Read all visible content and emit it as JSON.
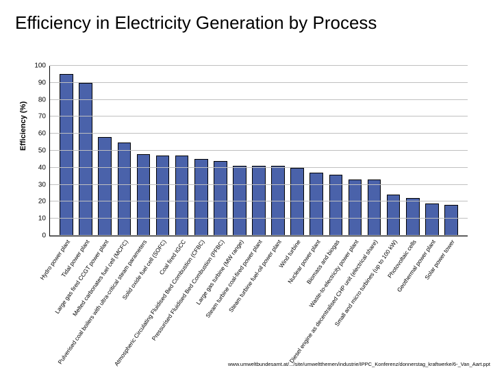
{
  "slide": {
    "title": "Efficiency in Electricity Generation by Process",
    "footer": "www.umweltbundesamt.at/.../site/umweltthemen/industrie/IPPC_Konferenz/donnerstag_kraftwerke/6-_Van_Aart.ppt"
  },
  "chart": {
    "type": "bar",
    "ylabel": "Efficiency (%)",
    "ylim": [
      0,
      100
    ],
    "ytick_step": 10,
    "background_color": "#ffffff",
    "grid_color": "#bfbfbf",
    "bar_fill": "#4a62aa",
    "bar_border": "#000000",
    "label_fontsize": 8.5,
    "ylabel_fontsize": 11,
    "title_fontsize": 26,
    "categories": [
      "Hydro power plant",
      "Tidal power plant",
      "Large gas fired CCGT power plant",
      "Melted carbonates fuel cell (MCFC)",
      "Pulverised coal boilers with ultra-critical steam parameters",
      "Solid oxide fuel cell (SOFC)",
      "Coal fired IGCC",
      "Atmospheric Circulating Fluidised Bed Combustion (CFBC)",
      "Pressurised Fluidised Bed Combustion (PFBC)",
      "Large gas turbine (MW range)",
      "Steam turbine coal-fired power plant",
      "Steam turbine fuel-oil power plant",
      "Wind turbine",
      "Nuclear power plant",
      "Biomass and biogas",
      "Waste-to-electricity power plant",
      "Diesel engine as decentralised CHP unit (electrical share)",
      "Small and micro turbines (up to 100 kW)",
      "Photovoltaic cells",
      "Geothermal power plant",
      "Solar power tower"
    ],
    "values": [
      95,
      90,
      58,
      55,
      48,
      47,
      47,
      45,
      44,
      41,
      41,
      41,
      40,
      37,
      36,
      33,
      33,
      24,
      22,
      19,
      18
    ]
  }
}
